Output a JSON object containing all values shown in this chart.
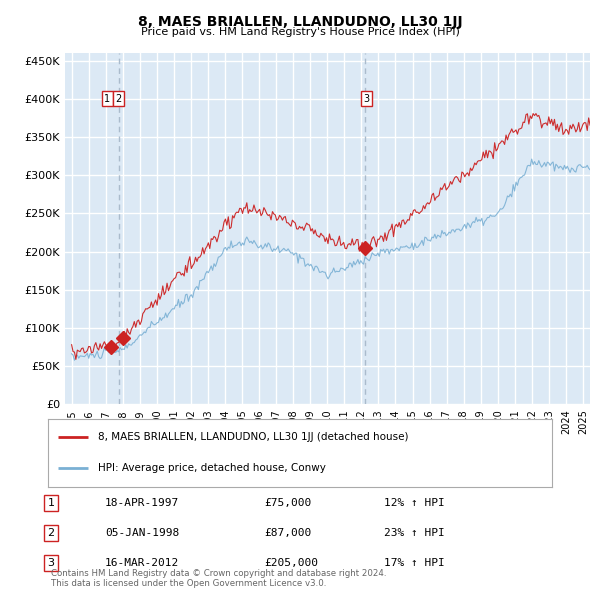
{
  "title": "8, MAES BRIALLEN, LLANDUDNO, LL30 1JJ",
  "subtitle": "Price paid vs. HM Land Registry's House Price Index (HPI)",
  "ylabel_ticks": [
    "£0",
    "£50K",
    "£100K",
    "£150K",
    "£200K",
    "£250K",
    "£300K",
    "£350K",
    "£400K",
    "£450K"
  ],
  "ylim": [
    0,
    460000
  ],
  "xlim_start": 1994.6,
  "xlim_end": 2025.4,
  "background_color": "#dce9f5",
  "grid_color": "#ffffff",
  "sale_dates": [
    1997.29,
    1998.02,
    2012.21
  ],
  "sale_prices": [
    75000,
    87000,
    205000
  ],
  "sale_labels": [
    "1",
    "2",
    "3"
  ],
  "vline1_date": 1997.75,
  "vline2_date": 2012.21,
  "legend_red": "8, MAES BRIALLEN, LLANDUDNO, LL30 1JJ (detached house)",
  "legend_blue": "HPI: Average price, detached house, Conwy",
  "table_rows": [
    [
      "1",
      "18-APR-1997",
      "£75,000",
      "12% ↑ HPI"
    ],
    [
      "2",
      "05-JAN-1998",
      "£87,000",
      "23% ↑ HPI"
    ],
    [
      "3",
      "16-MAR-2012",
      "£205,000",
      "17% ↑ HPI"
    ]
  ],
  "footnote": "Contains HM Land Registry data © Crown copyright and database right 2024.\nThis data is licensed under the Open Government Licence v3.0.",
  "red_line_color": "#cc2222",
  "blue_line_color": "#7ab0d4",
  "dot_color": "#cc2222",
  "vline_color": "#aabbcc"
}
